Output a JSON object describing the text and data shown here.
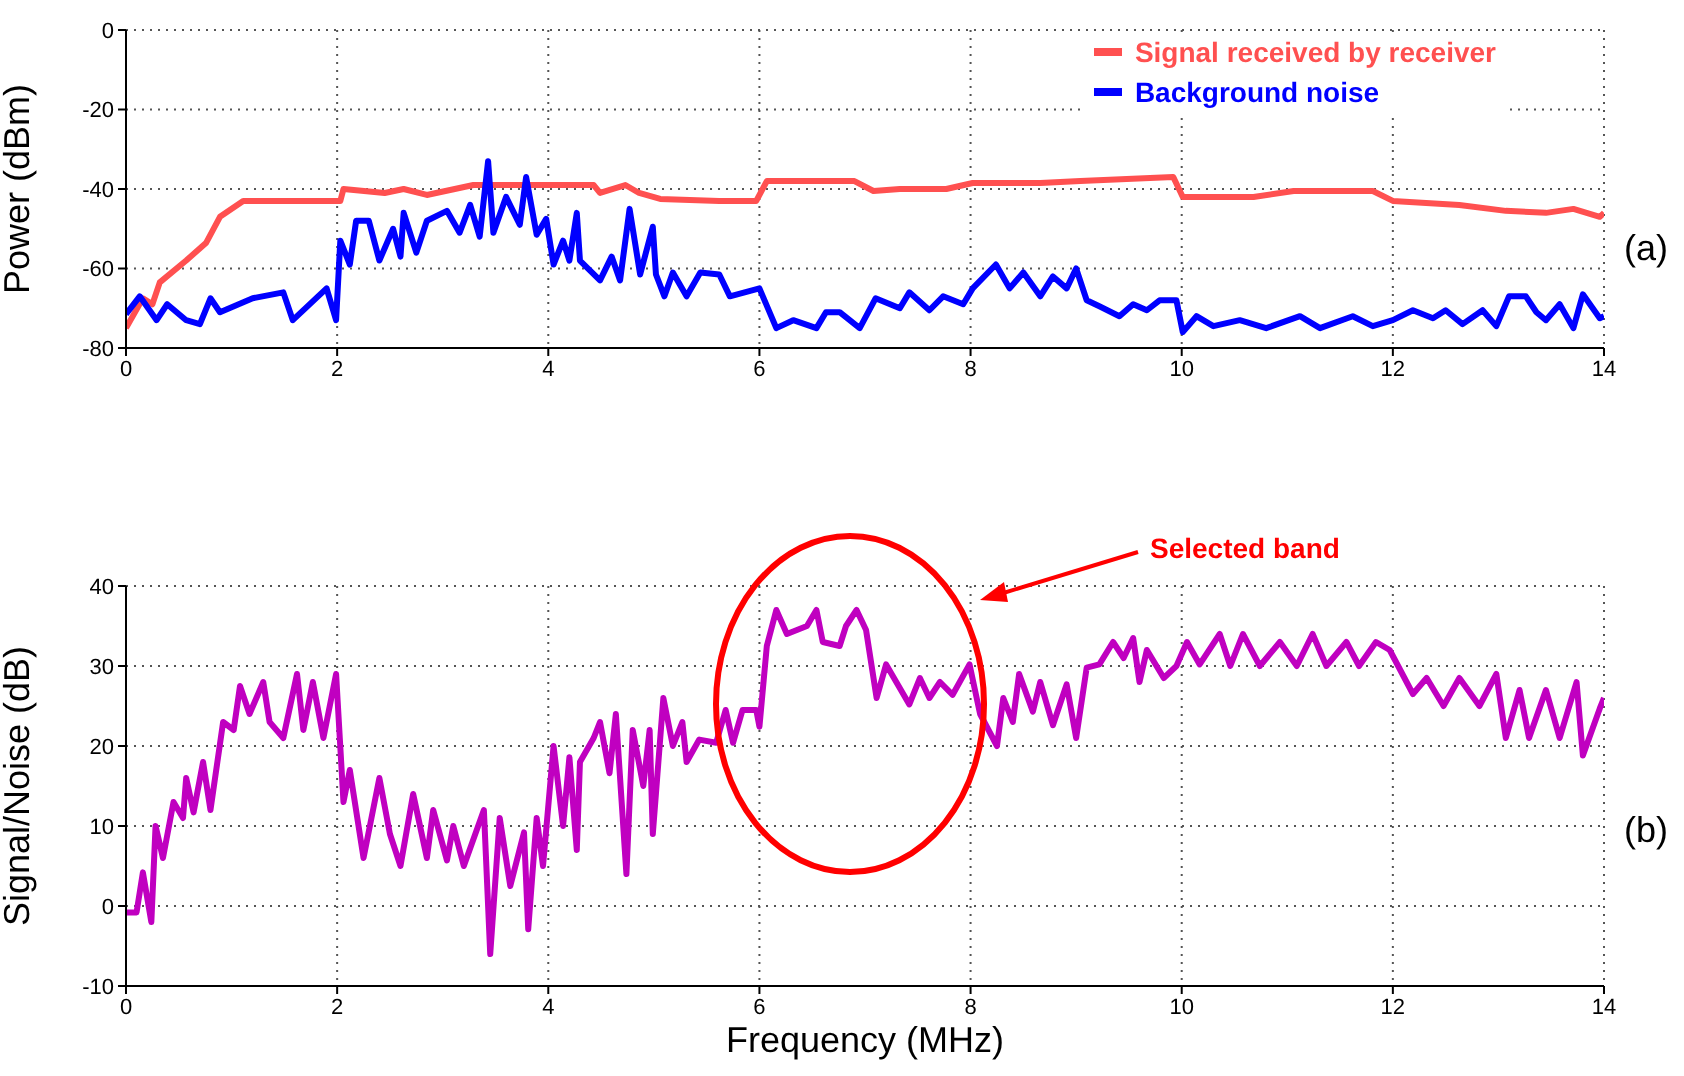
{
  "chart_data": [
    {
      "type": "line",
      "ylabel": "Power (dBm)",
      "xlim": [
        0,
        14
      ],
      "xticks": [
        0,
        2,
        4,
        6,
        8,
        10,
        12,
        14
      ],
      "ylim": [
        -80,
        0
      ],
      "yticks": [
        -80,
        -60,
        -40,
        -20,
        0
      ],
      "grid": true,
      "legend": "top right",
      "annotations": [
        "(a)"
      ],
      "series": [
        {
          "name": "Signal received by receiver",
          "color": "#ff5050",
          "x": [
            0,
            0.16,
            0.25,
            0.32,
            0.57,
            0.76,
            0.89,
            1.11,
            1.5,
            2.03,
            2.06,
            2.45,
            2.63,
            2.85,
            3.29,
            3.98,
            4.43,
            4.49,
            4.73,
            4.86,
            5.06,
            5.62,
            5.97,
            6.07,
            6.32,
            6.52,
            6.9,
            7.08,
            7.33,
            7.77,
            8.02,
            8.66,
            9.04,
            9.92,
            10.01,
            10.68,
            11.06,
            11.81,
            12.0,
            12.63,
            13.07,
            13.45,
            13.71,
            13.96,
            14
          ],
          "values": [
            -75,
            -67.5,
            -69,
            -63.5,
            -58,
            -53.5,
            -47,
            -43,
            -43,
            -43,
            -40,
            -41,
            -40,
            -41.5,
            -39,
            -39,
            -39,
            -41,
            -39,
            -41,
            -42.5,
            -43,
            -43,
            -38,
            -38,
            -38,
            -38,
            -40.5,
            -40,
            -40,
            -38.5,
            -38.5,
            -38,
            -37,
            -42,
            -42,
            -40.5,
            -40.5,
            -43,
            -44,
            -45.5,
            -46,
            -45,
            -47,
            -46
          ]
        },
        {
          "name": "Background noise",
          "color": "#0000ff",
          "x": [
            0,
            0.13,
            0.29,
            0.39,
            0.57,
            0.7,
            0.8,
            0.89,
            1.2,
            1.49,
            1.58,
            1.9,
            1.99,
            2.03,
            2.12,
            2.18,
            2.3,
            2.4,
            2.53,
            2.6,
            2.63,
            2.75,
            2.85,
            3.04,
            3.16,
            3.26,
            3.35,
            3.43,
            3.48,
            3.6,
            3.73,
            3.79,
            3.89,
            3.98,
            4.05,
            4.14,
            4.2,
            4.27,
            4.3,
            4.49,
            4.6,
            4.68,
            4.77,
            4.87,
            4.99,
            5.02,
            5.1,
            5.18,
            5.31,
            5.44,
            5.62,
            5.72,
            6.0,
            6.16,
            6.32,
            6.54,
            6.63,
            6.76,
            6.95,
            7.1,
            7.33,
            7.42,
            7.61,
            7.74,
            7.93,
            8.02,
            8.24,
            8.37,
            8.5,
            8.66,
            8.78,
            8.91,
            9.0,
            9.1,
            9.22,
            9.41,
            9.54,
            9.67,
            9.79,
            9.95,
            10.01,
            10.14,
            10.3,
            10.55,
            10.8,
            11.12,
            11.31,
            11.62,
            11.81,
            12.0,
            12.19,
            12.38,
            12.5,
            12.66,
            12.85,
            12.98,
            13.1,
            13.26,
            13.36,
            13.45,
            13.58,
            13.71,
            13.8,
            13.96,
            14
          ],
          "values": [
            -71.5,
            -67,
            -73,
            -69,
            -73,
            -74,
            -67.5,
            -71,
            -67.5,
            -66,
            -73,
            -65,
            -73,
            -53,
            -59,
            -48,
            -48,
            -58,
            -50,
            -57,
            -46,
            -56,
            -48,
            -45.5,
            -51,
            -44,
            -52,
            -33,
            -51,
            -42,
            -49,
            -37,
            -51.5,
            -47.5,
            -59,
            -53,
            -58,
            -46,
            -58,
            -63,
            -57,
            -63,
            -45,
            -61.5,
            -49.5,
            -61.5,
            -67,
            -61,
            -67,
            -61,
            -61.5,
            -67,
            -65,
            -75,
            -73,
            -75,
            -71,
            -71,
            -75,
            -67.5,
            -70,
            -66,
            -70.5,
            -67,
            -69,
            -65,
            -59,
            -65,
            -61,
            -67,
            -62,
            -65,
            -60,
            -68,
            -69.5,
            -72,
            -69,
            -70.5,
            -68,
            -68,
            -76,
            -72,
            -74.5,
            -73,
            -75,
            -72,
            -75,
            -72,
            -74.5,
            -73,
            -70.5,
            -72.5,
            -70.5,
            -74,
            -70.5,
            -74.5,
            -67,
            -67,
            -71,
            -73,
            -69,
            -75,
            -66.5,
            -72.5,
            -72
          ]
        }
      ]
    },
    {
      "type": "line",
      "xlabel": "Frequency (MHz)",
      "ylabel": "Signal/Noise (dB)",
      "xlim": [
        0,
        14
      ],
      "xticks": [
        0,
        2,
        4,
        6,
        8,
        10,
        12,
        14
      ],
      "ylim": [
        -10,
        40
      ],
      "yticks": [
        -10,
        0,
        10,
        20,
        30,
        40
      ],
      "grid": true,
      "annotations": [
        "(b)",
        "Selected band"
      ],
      "series": [
        {
          "color": "#c000c0",
          "x": [
            0,
            0.1,
            0.16,
            0.24,
            0.28,
            0.35,
            0.45,
            0.54,
            0.57,
            0.64,
            0.73,
            0.8,
            0.92,
            1.02,
            1.08,
            1.17,
            1.3,
            1.36,
            1.49,
            1.62,
            1.68,
            1.77,
            1.87,
            1.99,
            2.06,
            2.12,
            2.25,
            2.4,
            2.5,
            2.6,
            2.72,
            2.85,
            2.91,
            3.04,
            3.1,
            3.2,
            3.39,
            3.45,
            3.54,
            3.64,
            3.77,
            3.81,
            3.89,
            3.95,
            4.05,
            4.14,
            4.2,
            4.27,
            4.3,
            4.43,
            4.49,
            4.58,
            4.64,
            4.74,
            4.8,
            4.9,
            4.96,
            4.99,
            5.09,
            5.18,
            5.27,
            5.31,
            5.43,
            5.59,
            5.68,
            5.75,
            5.84,
            5.97,
            6.0,
            6.07,
            6.16,
            6.26,
            6.45,
            6.54,
            6.6,
            6.76,
            6.82,
            6.92,
            7.01,
            7.11,
            7.2,
            7.42,
            7.52,
            7.61,
            7.71,
            7.83,
            7.99,
            8.09,
            8.25,
            8.31,
            8.4,
            8.46,
            8.59,
            8.66,
            8.78,
            8.91,
            9.0,
            9.1,
            9.22,
            9.35,
            9.45,
            9.54,
            9.6,
            9.67,
            9.83,
            9.95,
            10.05,
            10.17,
            10.36,
            10.46,
            10.58,
            10.74,
            10.93,
            11.09,
            11.24,
            11.37,
            11.56,
            11.68,
            11.84,
            11.97,
            12.19,
            12.32,
            12.48,
            12.63,
            12.82,
            12.98,
            13.07,
            13.2,
            13.29,
            13.45,
            13.58,
            13.74,
            13.8,
            13.96,
            14
          ],
          "values": [
            -0.8,
            -0.8,
            4.2,
            -2,
            10,
            6,
            13,
            11,
            16,
            11.7,
            18,
            12,
            23,
            22,
            27.5,
            24,
            28,
            23,
            21,
            29,
            22,
            28,
            21,
            29,
            13,
            17,
            6,
            16,
            9,
            5,
            14,
            6,
            12,
            5.7,
            10,
            5,
            12,
            -6,
            11,
            2.5,
            9.2,
            -2.9,
            11,
            5,
            20,
            10,
            18.6,
            7,
            18,
            21,
            23,
            16.6,
            24,
            4,
            22,
            15,
            22,
            9,
            26,
            20,
            23,
            18,
            20.8,
            20.4,
            24.5,
            20.4,
            24.5,
            24.5,
            22.4,
            32.5,
            37,
            34,
            35,
            37,
            33,
            32.5,
            35,
            37,
            34.5,
            26,
            30.2,
            25.2,
            28.5,
            26,
            28,
            26.4,
            30.2,
            24,
            20,
            26,
            23,
            29,
            24.3,
            28,
            22.6,
            27.7,
            21,
            29.8,
            30.2,
            33,
            31,
            33.5,
            28,
            32,
            28.5,
            30,
            33,
            30.2,
            34,
            30,
            34,
            30,
            33,
            30,
            34,
            30,
            33,
            30,
            33,
            32,
            26.5,
            28.5,
            25,
            28.5,
            25,
            29,
            21,
            27,
            21,
            27,
            21,
            28,
            18.8,
            24.7,
            26
          ]
        }
      ]
    }
  ]
}
